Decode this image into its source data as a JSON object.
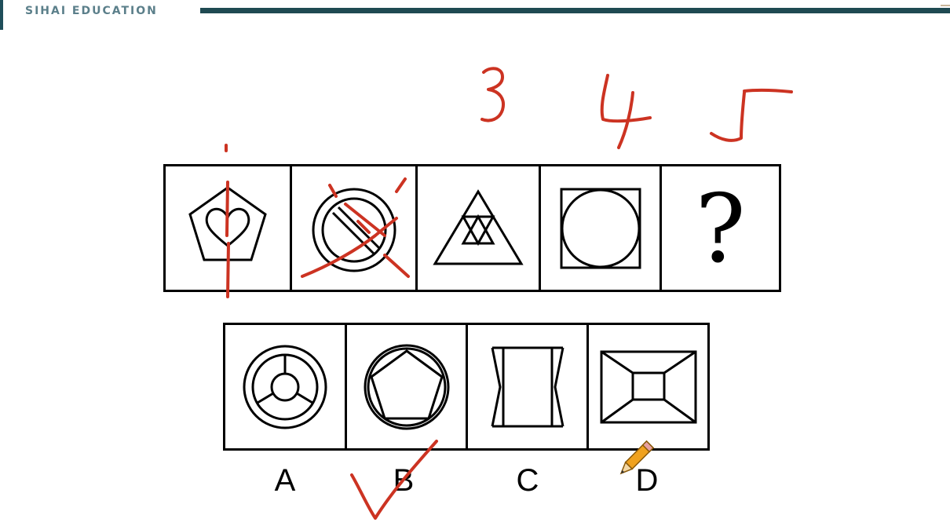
{
  "header": {
    "brand_text": "SIHAI EDUCATION"
  },
  "puzzle": {
    "question_mark": "?",
    "figure_icons": [
      "pentagon-heart-icon",
      "circle-slash-icon",
      "triangle-in-triangle-icon",
      "circle-in-square-icon"
    ]
  },
  "options": {
    "labels": [
      "A",
      "B",
      "C",
      "D"
    ],
    "icons": [
      "circle-spokes-icon",
      "pentagon-in-circle-icon",
      "hourglass-rectangle-icon",
      "frame-rectangle-icon"
    ]
  },
  "annotations": {
    "ink_color": "#cc3322",
    "handwritten_numbers": [
      "3",
      "4",
      "5"
    ],
    "selected_answer": "B"
  }
}
